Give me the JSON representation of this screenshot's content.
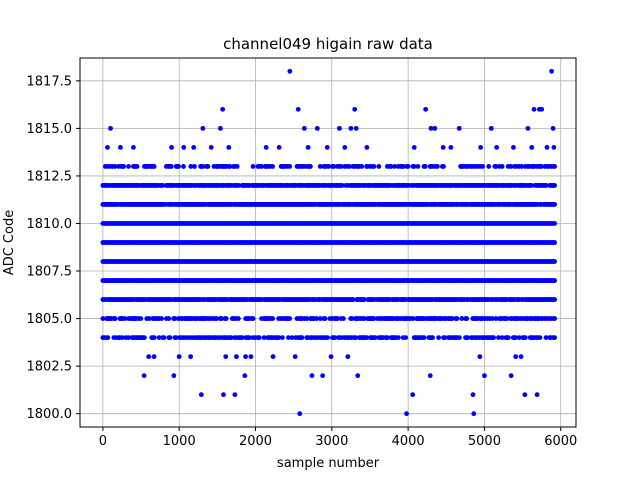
{
  "chart_data": {
    "type": "scatter",
    "title": "channel049 higain raw data",
    "xlabel": "sample number",
    "ylabel": "ADC Code",
    "xlim": [
      -300,
      6200
    ],
    "ylim": [
      1799.3,
      1818.7
    ],
    "xticks": [
      0,
      1000,
      2000,
      3000,
      4000,
      5000,
      6000
    ],
    "xtick_labels": [
      "0",
      "1000",
      "2000",
      "3000",
      "4000",
      "5000",
      "6000"
    ],
    "yticks": [
      1800.0,
      1802.5,
      1805.0,
      1807.5,
      1810.0,
      1812.5,
      1815.0,
      1817.5
    ],
    "ytick_labels": [
      "1800.0",
      "1802.5",
      "1805.0",
      "1807.5",
      "1810.0",
      "1812.5",
      "1815.0",
      "1817.5"
    ],
    "grid": true,
    "marker_color": "#0000ff",
    "x_range": [
      0,
      5920
    ],
    "dense_levels": [
      {
        "y": 1806,
        "density": 0.9
      },
      {
        "y": 1807,
        "density": 1.0
      },
      {
        "y": 1808,
        "density": 1.0
      },
      {
        "y": 1809,
        "density": 1.0
      },
      {
        "y": 1810,
        "density": 1.0
      },
      {
        "y": 1811,
        "density": 0.95
      },
      {
        "y": 1812,
        "density": 0.9
      },
      {
        "y": 1805,
        "density": 0.6
      },
      {
        "y": 1804,
        "density": 0.55
      },
      {
        "y": 1813,
        "density": 0.45
      }
    ],
    "sparse_points": [
      {
        "x": 60,
        "y": 1814
      },
      {
        "x": 100,
        "y": 1815
      },
      {
        "x": 230,
        "y": 1814
      },
      {
        "x": 400,
        "y": 1814
      },
      {
        "x": 540,
        "y": 1802
      },
      {
        "x": 600,
        "y": 1803
      },
      {
        "x": 670,
        "y": 1803
      },
      {
        "x": 900,
        "y": 1814
      },
      {
        "x": 930,
        "y": 1802
      },
      {
        "x": 1000,
        "y": 1803
      },
      {
        "x": 1060,
        "y": 1814
      },
      {
        "x": 1150,
        "y": 1803
      },
      {
        "x": 1190,
        "y": 1814
      },
      {
        "x": 1290,
        "y": 1801
      },
      {
        "x": 1310,
        "y": 1815
      },
      {
        "x": 1420,
        "y": 1814
      },
      {
        "x": 1540,
        "y": 1815
      },
      {
        "x": 1570,
        "y": 1816
      },
      {
        "x": 1580,
        "y": 1801
      },
      {
        "x": 1610,
        "y": 1803
      },
      {
        "x": 1650,
        "y": 1814
      },
      {
        "x": 1730,
        "y": 1801
      },
      {
        "x": 1750,
        "y": 1803
      },
      {
        "x": 1860,
        "y": 1802
      },
      {
        "x": 1870,
        "y": 1803
      },
      {
        "x": 1940,
        "y": 1803
      },
      {
        "x": 2140,
        "y": 1814
      },
      {
        "x": 2230,
        "y": 1803
      },
      {
        "x": 2310,
        "y": 1814
      },
      {
        "x": 2450,
        "y": 1818
      },
      {
        "x": 2520,
        "y": 1803
      },
      {
        "x": 2560,
        "y": 1816
      },
      {
        "x": 2580,
        "y": 1800
      },
      {
        "x": 2640,
        "y": 1815
      },
      {
        "x": 2690,
        "y": 1814
      },
      {
        "x": 2740,
        "y": 1802
      },
      {
        "x": 2810,
        "y": 1815
      },
      {
        "x": 2880,
        "y": 1802
      },
      {
        "x": 2940,
        "y": 1814
      },
      {
        "x": 2990,
        "y": 1803
      },
      {
        "x": 3100,
        "y": 1815
      },
      {
        "x": 3170,
        "y": 1814
      },
      {
        "x": 3210,
        "y": 1803
      },
      {
        "x": 3250,
        "y": 1815
      },
      {
        "x": 3300,
        "y": 1816
      },
      {
        "x": 3320,
        "y": 1815
      },
      {
        "x": 3340,
        "y": 1802
      },
      {
        "x": 3460,
        "y": 1814
      },
      {
        "x": 3980,
        "y": 1800
      },
      {
        "x": 4060,
        "y": 1801
      },
      {
        "x": 4080,
        "y": 1814
      },
      {
        "x": 4230,
        "y": 1816
      },
      {
        "x": 4290,
        "y": 1802
      },
      {
        "x": 4300,
        "y": 1815
      },
      {
        "x": 4350,
        "y": 1815
      },
      {
        "x": 4460,
        "y": 1814
      },
      {
        "x": 4560,
        "y": 1814
      },
      {
        "x": 4670,
        "y": 1815
      },
      {
        "x": 4850,
        "y": 1801
      },
      {
        "x": 4860,
        "y": 1800
      },
      {
        "x": 4940,
        "y": 1803
      },
      {
        "x": 4950,
        "y": 1814
      },
      {
        "x": 5000,
        "y": 1802
      },
      {
        "x": 5090,
        "y": 1815
      },
      {
        "x": 5160,
        "y": 1814
      },
      {
        "x": 5350,
        "y": 1802
      },
      {
        "x": 5380,
        "y": 1814
      },
      {
        "x": 5410,
        "y": 1803
      },
      {
        "x": 5480,
        "y": 1803
      },
      {
        "x": 5530,
        "y": 1801
      },
      {
        "x": 5570,
        "y": 1815
      },
      {
        "x": 5620,
        "y": 1814
      },
      {
        "x": 5650,
        "y": 1816
      },
      {
        "x": 5690,
        "y": 1801
      },
      {
        "x": 5720,
        "y": 1816
      },
      {
        "x": 5750,
        "y": 1816
      },
      {
        "x": 5820,
        "y": 1814
      },
      {
        "x": 5880,
        "y": 1818
      },
      {
        "x": 5900,
        "y": 1815
      },
      {
        "x": 5910,
        "y": 1814
      }
    ]
  }
}
